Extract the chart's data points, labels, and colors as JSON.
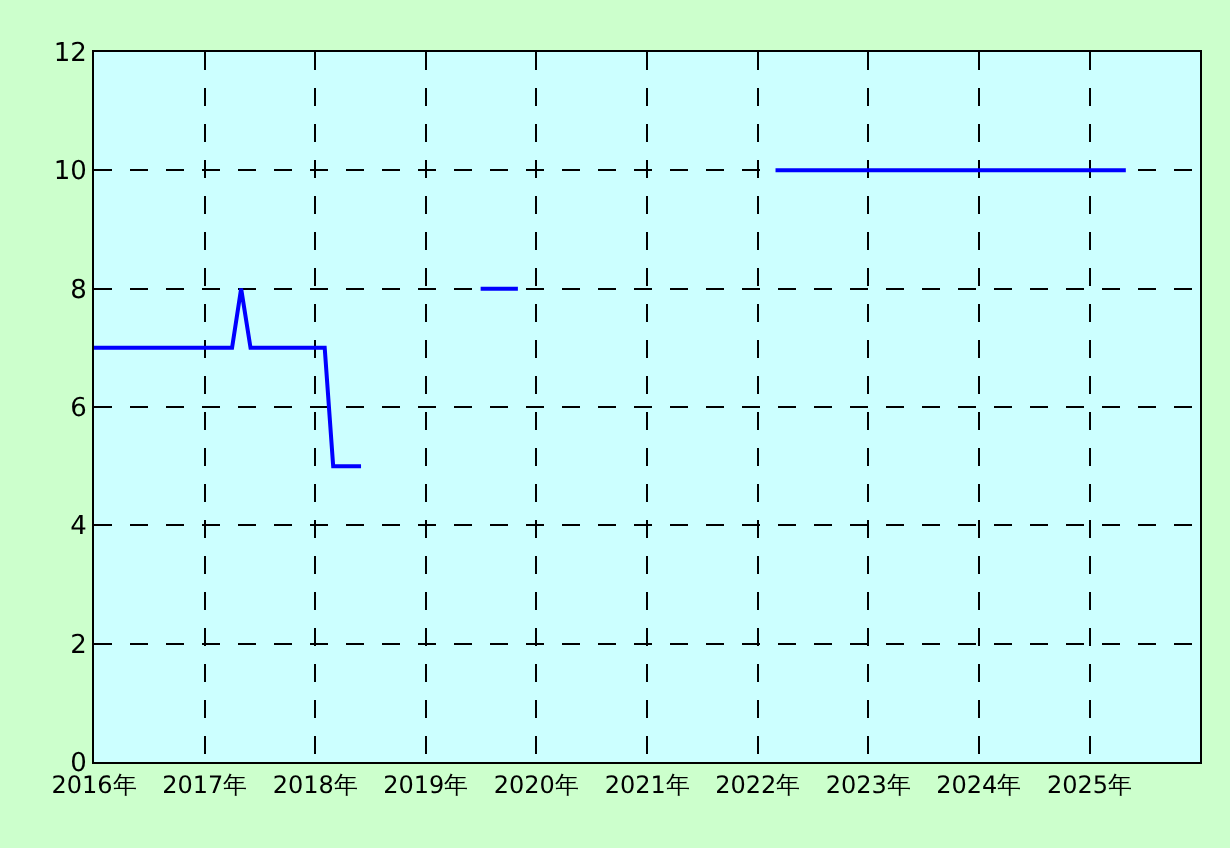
{
  "chart_data": {
    "type": "line",
    "x": [
      "2016-01",
      "2017-04",
      "2017-05",
      "2017-06",
      "2018-02",
      "2018-03",
      "2018-06",
      "2018-07",
      "2019-07",
      "2019-11",
      "2019-12",
      "2022-03",
      "2025-05"
    ],
    "series": [
      {
        "color": "#0000ff",
        "values": [
          7,
          7,
          8,
          7,
          7,
          5,
          5,
          null,
          8,
          8,
          null,
          10,
          10
        ]
      }
    ],
    "xlim": [
      "2016-01",
      "2026-01"
    ],
    "xticks": [
      {
        "value": "2016-01",
        "label": "2016年"
      },
      {
        "value": "2017-01",
        "label": "2017年"
      },
      {
        "value": "2018-01",
        "label": "2018年"
      },
      {
        "value": "2019-01",
        "label": "2019年"
      },
      {
        "value": "2020-01",
        "label": "2020年"
      },
      {
        "value": "2021-01",
        "label": "2021年"
      },
      {
        "value": "2022-01",
        "label": "2022年"
      },
      {
        "value": "2023-01",
        "label": "2023年"
      },
      {
        "value": "2024-01",
        "label": "2024年"
      },
      {
        "value": "2025-01",
        "label": "2025年"
      }
    ],
    "ylim": [
      0,
      12
    ],
    "yticks": [
      0,
      2,
      4,
      6,
      8,
      10,
      12
    ],
    "grid": true,
    "line_style": "solid"
  }
}
